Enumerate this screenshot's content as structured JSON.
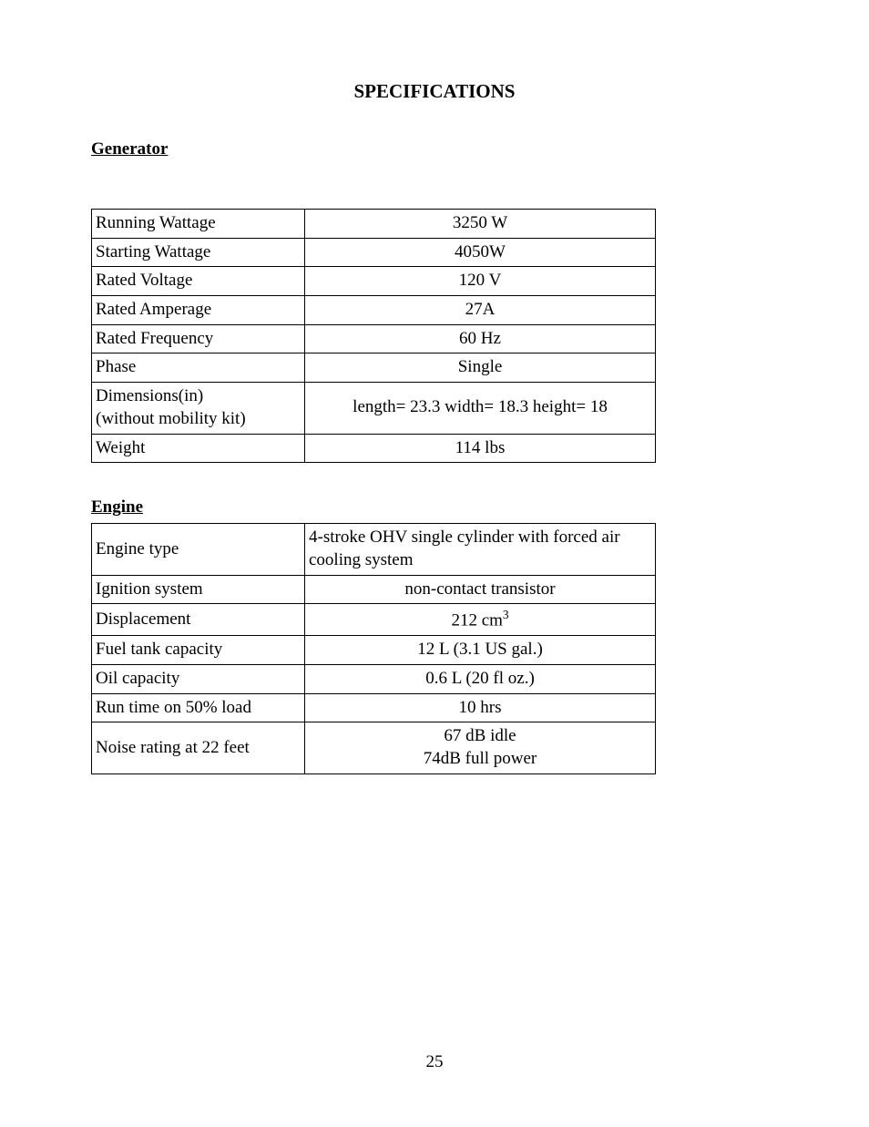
{
  "title": "SPECIFICATIONS",
  "page_number": "25",
  "sections": {
    "generator": {
      "heading": "Generator",
      "rows": [
        {
          "label": "Running Wattage",
          "value": "3250 W",
          "align": "center"
        },
        {
          "label": "Starting Wattage",
          "value": "4050W",
          "align": "center"
        },
        {
          "label": "Rated Voltage",
          "value": "120 V",
          "align": "center"
        },
        {
          "label": "Rated Amperage",
          "value": "27A",
          "align": "center"
        },
        {
          "label": "Rated Frequency",
          "value": "60 Hz",
          "align": "center"
        },
        {
          "label": "Phase",
          "value": "Single",
          "align": "center"
        },
        {
          "label": "Dimensions(in)\n(without mobility kit)",
          "value": "length= 23.3  width= 18.3 height= 18",
          "align": "center"
        },
        {
          "label": "Weight",
          "value": "114 lbs",
          "align": "center"
        }
      ]
    },
    "engine": {
      "heading": "Engine",
      "rows": [
        {
          "label": "Engine type",
          "value": "4-stroke OHV single cylinder with forced air cooling system",
          "align": "left"
        },
        {
          "label": "Ignition system",
          "value": "non-contact transistor",
          "align": "center"
        },
        {
          "label": "Displacement",
          "value_html": "212 cm<sup>3</sup>",
          "align": "center"
        },
        {
          "label": "Fuel tank capacity",
          "value": "12 L (3.1 US gal.)",
          "align": "center"
        },
        {
          "label": "Oil capacity",
          "value": "0.6 L (20 fl oz.)",
          "align": "center"
        },
        {
          "label": "Run time on 50% load",
          "value": "10 hrs",
          "align": "center"
        },
        {
          "label": "Noise rating at 22 feet",
          "value": "67 dB idle\n74dB full power",
          "align": "center"
        }
      ]
    }
  }
}
